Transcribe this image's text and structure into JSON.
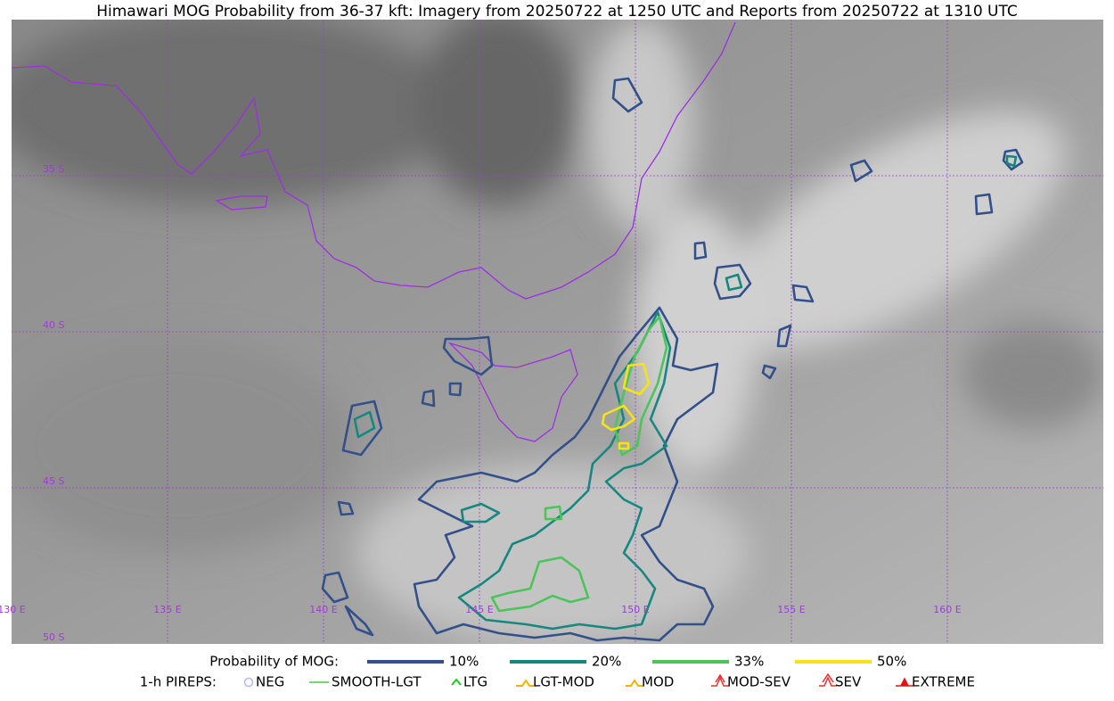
{
  "title": "Himawari MOG Probability from 36-37 kft: Imagery from 20250722 at 1250 UTC and Reports from 20250722 at 1310 UTC",
  "grid_labels": {
    "lat": [
      "35 S",
      "40 S",
      "45 S",
      "50 S"
    ],
    "lon": [
      "130 E",
      "135 E",
      "140 E",
      "145 E",
      "150 E",
      "155 E",
      "160 E"
    ]
  },
  "legend": {
    "probability": {
      "label": "Probability of MOG:",
      "items": [
        {
          "label": "10%",
          "color": "#33508a"
        },
        {
          "label": "20%",
          "color": "#17877f"
        },
        {
          "label": "33%",
          "color": "#4cc45a"
        },
        {
          "label": "50%",
          "color": "#f5e316"
        }
      ]
    },
    "pireps": {
      "label": "1-h PIREPS:",
      "items": [
        {
          "label": "NEG",
          "color": "#b7b7f0"
        },
        {
          "label": "SMOOTH-LGT",
          "color": "#3dd43d"
        },
        {
          "label": "LTG",
          "color": "#12d412"
        },
        {
          "label": "LGT-MOD",
          "color": "#f0b400"
        },
        {
          "label": "MOD",
          "color": "#f0b400"
        },
        {
          "label": "MOD-SEV",
          "color": "#e83030"
        },
        {
          "label": "SEV",
          "color": "#e83030"
        },
        {
          "label": "EXTREME",
          "color": "#e81010"
        }
      ]
    }
  }
}
